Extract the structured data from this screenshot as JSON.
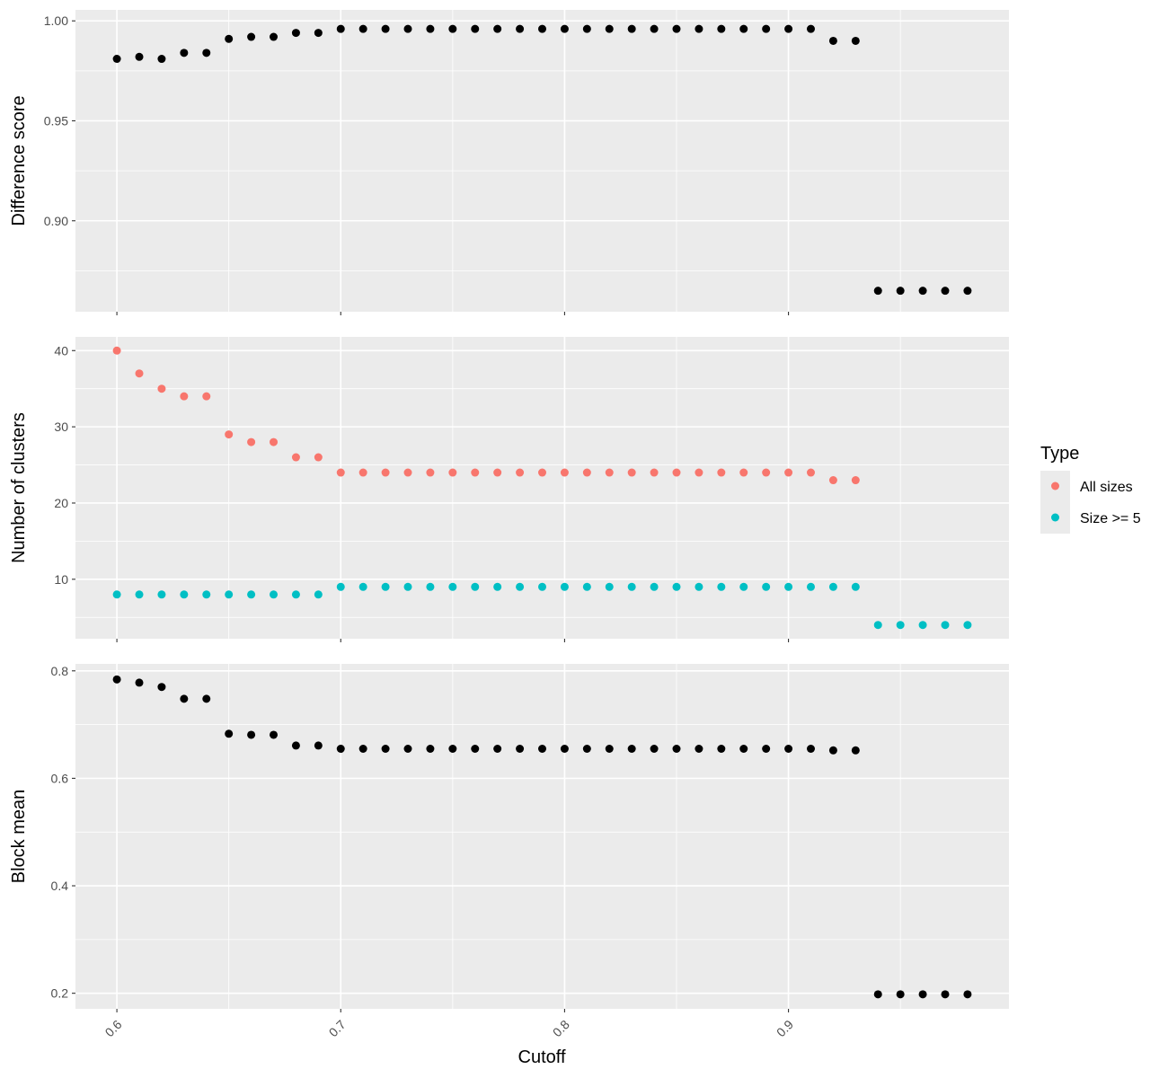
{
  "chart_data": {
    "type": "scatter",
    "xlabel": "Cutoff",
    "x": [
      0.6,
      0.61,
      0.62,
      0.63,
      0.64,
      0.65,
      0.66,
      0.67,
      0.68,
      0.69,
      0.7,
      0.71,
      0.72,
      0.73,
      0.74,
      0.75,
      0.76,
      0.77,
      0.78,
      0.79,
      0.8,
      0.81,
      0.82,
      0.83,
      0.84,
      0.85,
      0.86,
      0.87,
      0.88,
      0.89,
      0.9,
      0.91,
      0.92,
      0.93,
      0.94,
      0.95,
      0.96,
      0.97,
      0.98
    ],
    "x_ticks": [
      0.6,
      0.7,
      0.8,
      0.9
    ],
    "x_tick_labels": [
      "0.6",
      "0.7",
      "0.8",
      "0.9"
    ],
    "xlim": [
      0.5815,
      0.9985
    ],
    "grid": true,
    "legend_position": "right",
    "legend": {
      "title": "Type",
      "entries": [
        {
          "label": "All sizes",
          "color": "#F8766D"
        },
        {
          "label": "Size >= 5",
          "color": "#00BFC4"
        }
      ]
    },
    "panels": [
      {
        "ylabel": "Difference score",
        "ylim": [
          0.8545,
          1.0055
        ],
        "y_ticks": [
          0.9,
          0.95,
          1.0
        ],
        "y_tick_labels": [
          "0.90",
          "0.95",
          "1.00"
        ],
        "series": [
          {
            "color": "#000000",
            "values": [
              0.981,
              0.982,
              0.981,
              0.984,
              0.984,
              0.991,
              0.992,
              0.992,
              0.994,
              0.994,
              0.996,
              0.996,
              0.996,
              0.996,
              0.996,
              0.996,
              0.996,
              0.996,
              0.996,
              0.996,
              0.996,
              0.996,
              0.996,
              0.996,
              0.996,
              0.996,
              0.996,
              0.996,
              0.996,
              0.996,
              0.996,
              0.996,
              0.99,
              0.99,
              0.865,
              0.865,
              0.865,
              0.865,
              0.865
            ]
          }
        ]
      },
      {
        "ylabel": "Number of clusters",
        "ylim": [
          2.2,
          41.8
        ],
        "y_ticks": [
          10,
          20,
          30,
          40
        ],
        "y_tick_labels": [
          "10",
          "20",
          "30",
          "40"
        ],
        "series": [
          {
            "name": "All sizes",
            "color": "#F8766D",
            "x": [
              0.6,
              0.61,
              0.62,
              0.63,
              0.64,
              0.65,
              0.66,
              0.67,
              0.68,
              0.69,
              0.7,
              0.71,
              0.72,
              0.73,
              0.74,
              0.75,
              0.76,
              0.77,
              0.78,
              0.79,
              0.8,
              0.81,
              0.82,
              0.83,
              0.84,
              0.85,
              0.86,
              0.87,
              0.88,
              0.89,
              0.9,
              0.91,
              0.92,
              0.93
            ],
            "values": [
              40,
              37,
              35,
              34,
              34,
              29,
              28,
              28,
              26,
              26,
              24,
              24,
              24,
              24,
              24,
              24,
              24,
              24,
              24,
              24,
              24,
              24,
              24,
              24,
              24,
              24,
              24,
              24,
              24,
              24,
              24,
              24,
              23,
              23
            ]
          },
          {
            "name": "Size >= 5",
            "color": "#00BFC4",
            "values": [
              8,
              8,
              8,
              8,
              8,
              8,
              8,
              8,
              8,
              8,
              9,
              9,
              9,
              9,
              9,
              9,
              9,
              9,
              9,
              9,
              9,
              9,
              9,
              9,
              9,
              9,
              9,
              9,
              9,
              9,
              9,
              9,
              9,
              9,
              4,
              4,
              4,
              4,
              4
            ]
          }
        ]
      },
      {
        "ylabel": "Block mean",
        "ylim": [
          0.171,
          0.813
        ],
        "y_ticks": [
          0.2,
          0.4,
          0.6,
          0.8
        ],
        "y_tick_labels": [
          "0.2",
          "0.4",
          "0.6",
          "0.8"
        ],
        "series": [
          {
            "color": "#000000",
            "values": [
              0.784,
              0.778,
              0.77,
              0.748,
              0.748,
              0.683,
              0.681,
              0.681,
              0.661,
              0.661,
              0.655,
              0.655,
              0.655,
              0.655,
              0.655,
              0.655,
              0.655,
              0.655,
              0.655,
              0.655,
              0.655,
              0.655,
              0.655,
              0.655,
              0.655,
              0.655,
              0.655,
              0.655,
              0.655,
              0.655,
              0.655,
              0.655,
              0.652,
              0.652,
              0.198,
              0.198,
              0.198,
              0.198,
              0.198
            ]
          }
        ]
      }
    ]
  }
}
